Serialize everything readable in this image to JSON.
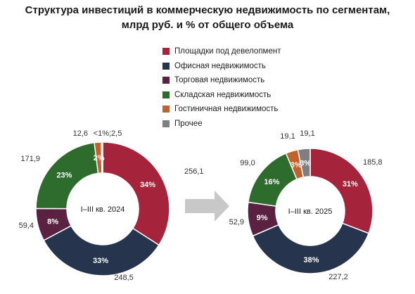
{
  "title": {
    "line1": "Структура инвестиций в коммерческую недвижимость по сегментам,",
    "line2": "млрд руб. и % от общего объема"
  },
  "legend": [
    {
      "label": "Площадки под девелопмент",
      "color": "#a6243b"
    },
    {
      "label": "Офисная недвижимость",
      "color": "#27344e"
    },
    {
      "label": "Торговая недвижимость",
      "color": "#5a2140"
    },
    {
      "label": "Складская недвижимость",
      "color": "#2e6c2e"
    },
    {
      "label": "Гостиничная недвижимость",
      "color": "#c0622e"
    },
    {
      "label": "Прочее",
      "color": "#7f7f7f"
    }
  ],
  "arrow_color": "#c8c8c8",
  "chart_data": [
    {
      "type": "pie",
      "center_label": "I–III кв. 2024",
      "slices": [
        {
          "segment": "Площадки под девелопмент",
          "value": 256.1,
          "value_label": "256,1",
          "pct_label": "34%",
          "color": "#a6243b"
        },
        {
          "segment": "Офисная недвижимость",
          "value": 248.5,
          "value_label": "248,5",
          "pct_label": "33%",
          "color": "#27344e"
        },
        {
          "segment": "Торговая недвижимость",
          "value": 59.4,
          "value_label": "59,4",
          "pct_label": "8%",
          "color": "#5a2140"
        },
        {
          "segment": "Складская недвижимость",
          "value": 171.9,
          "value_label": "171,9",
          "pct_label": "23%",
          "color": "#2e6c2e"
        },
        {
          "segment": "Гостиничная недвижимость",
          "value": 12.6,
          "value_label": "12,6",
          "pct_label": "2%",
          "color": "#c0622e"
        },
        {
          "segment": "Прочее",
          "value": 2.5,
          "value_label": "<1%;2,5",
          "pct_label": "",
          "color": "#7f7f7f"
        }
      ]
    },
    {
      "type": "pie",
      "center_label": "I–III кв. 2025",
      "slices": [
        {
          "segment": "Площадки под девелопмент",
          "value": 185.8,
          "value_label": "185,8",
          "pct_label": "31%",
          "color": "#a6243b"
        },
        {
          "segment": "Офисная недвижимость",
          "value": 227.2,
          "value_label": "227,2",
          "pct_label": "38%",
          "color": "#27344e"
        },
        {
          "segment": "Торговая недвижимость",
          "value": 52.9,
          "value_label": "52,9",
          "pct_label": "9%",
          "color": "#5a2140"
        },
        {
          "segment": "Складская недвижимость",
          "value": 99.0,
          "value_label": "99,0",
          "pct_label": "16%",
          "color": "#2e6c2e"
        },
        {
          "segment": "Гостиничная недвижимость",
          "value": 19.1,
          "value_label": "19,1",
          "pct_label": "3%",
          "color": "#c0622e"
        },
        {
          "segment": "Прочее",
          "value": 19.1,
          "value_label": "19,1",
          "pct_label": "3%",
          "color": "#7f7f7f"
        }
      ]
    }
  ]
}
